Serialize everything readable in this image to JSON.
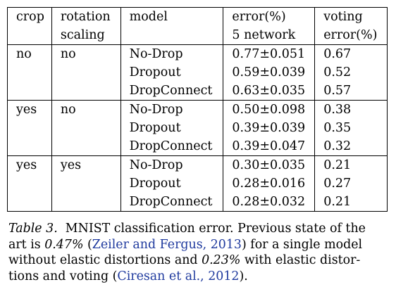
{
  "table": {
    "headers": {
      "crop": "crop",
      "rotation_line1": "rotation",
      "rotation_line2": "scaling",
      "model": "model",
      "error_line1": "error(%)",
      "error_line2": "5 network",
      "voting_line1": "voting",
      "voting_line2": "error(%)"
    },
    "rows": [
      {
        "crop": "no",
        "rotation": "no",
        "model": "No-Drop",
        "error": "0.77±0.051",
        "voting": "0.67",
        "voting_bold": false
      },
      {
        "crop": "",
        "rotation": "",
        "model": "Dropout",
        "error": "0.59±0.039",
        "voting": "0.52",
        "voting_bold": true
      },
      {
        "crop": "",
        "rotation": "",
        "model": "DropConnect",
        "error": "0.63±0.035",
        "voting": "0.57",
        "voting_bold": false
      },
      {
        "crop": "yes",
        "rotation": "no",
        "model": "No-Drop",
        "error": "0.50±0.098",
        "voting": "0.38",
        "voting_bold": false
      },
      {
        "crop": "",
        "rotation": "",
        "model": "Dropout",
        "error": "0.39±0.039",
        "voting": "0.35",
        "voting_bold": false
      },
      {
        "crop": "",
        "rotation": "",
        "model": "DropConnect",
        "error": "0.39±0.047",
        "voting": "0.32",
        "voting_bold": true
      },
      {
        "crop": "yes",
        "rotation": "yes",
        "model": "No-Drop",
        "error": "0.30±0.035",
        "voting": "0.21",
        "voting_bold": true
      },
      {
        "crop": "",
        "rotation": "",
        "model": "Dropout",
        "error": "0.28±0.016",
        "voting": "0.27",
        "voting_bold": false
      },
      {
        "crop": "",
        "rotation": "",
        "model": "DropConnect",
        "error": "0.28±0.032",
        "voting": "0.21",
        "voting_bold": true
      }
    ]
  },
  "caption": {
    "label": "Table 3.",
    "line1_text": "MNIST classification error. Previous state of the",
    "line2_pre": "art is ",
    "line2_value": "0.47%",
    "line2_open": " (",
    "line2_cite": "Zeiler and Fergus, 2013",
    "line2_post": ") for a single model",
    "line3_pre": "without elastic distortions and ",
    "line3_value": "0.23%",
    "line3_post": " with elastic distor-",
    "line4_pre": "tions and voting (",
    "line4_cite": "Ciresan et al., 2012",
    "line4_post": ")."
  },
  "colors": {
    "citation": "#1f3a9e",
    "text": "#000000",
    "background": "#ffffff"
  }
}
